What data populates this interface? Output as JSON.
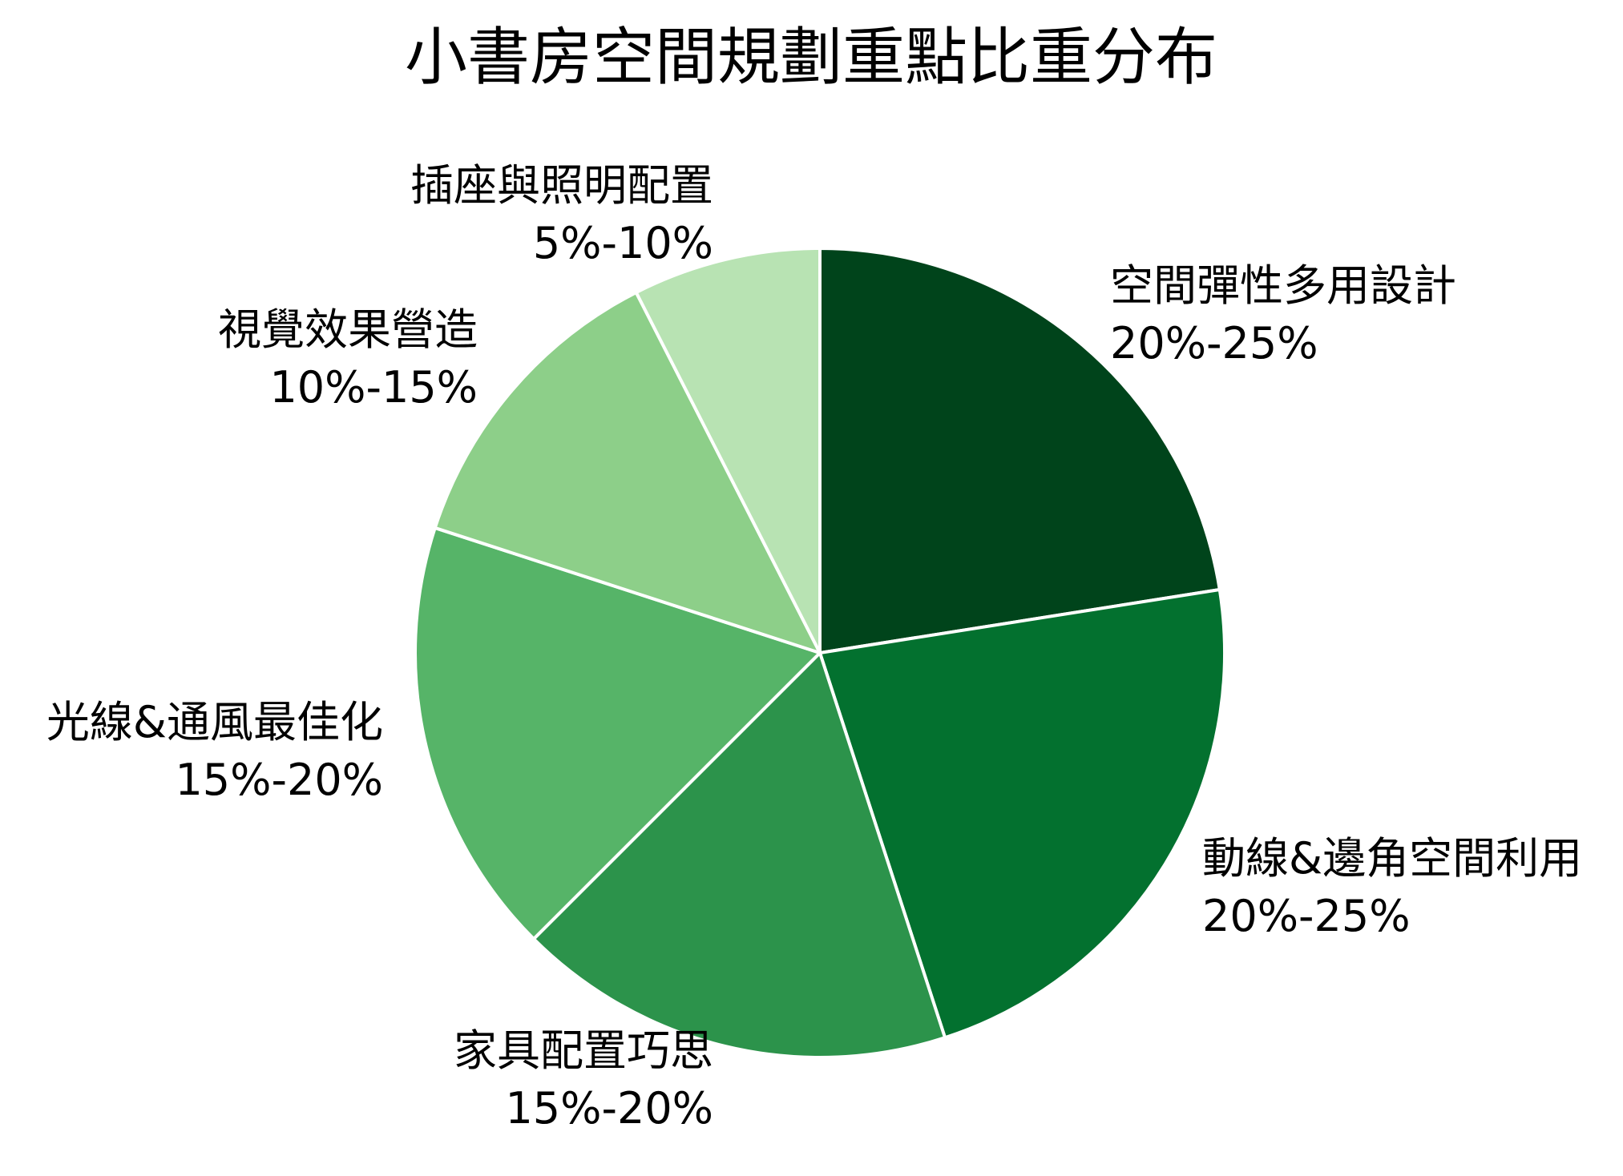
{
  "chart_data": {
    "type": "pie",
    "title": "小書房空間規劃重點比重分布",
    "start_angle_deg": 0,
    "direction": "clockwise",
    "slices": [
      {
        "label": "空間彈性多用設計",
        "range": "20%-25%",
        "value": 22.5,
        "color": "#00441b"
      },
      {
        "label": "動線&邊角空間利用",
        "range": "20%-25%",
        "value": 22.5,
        "color": "#03712f"
      },
      {
        "label": "家具配置巧思",
        "range": "15%-20%",
        "value": 17.5,
        "color": "#2c934b"
      },
      {
        "label": "光線&通風最佳化",
        "range": "15%-20%",
        "value": 17.5,
        "color": "#56b468"
      },
      {
        "label": "視覺效果營造",
        "range": "10%-15%",
        "value": 12.5,
        "color": "#8dcf89"
      },
      {
        "label": "插座與照明配置",
        "range": "5%-10%",
        "value": 7.5,
        "color": "#b8e3b3"
      }
    ]
  }
}
